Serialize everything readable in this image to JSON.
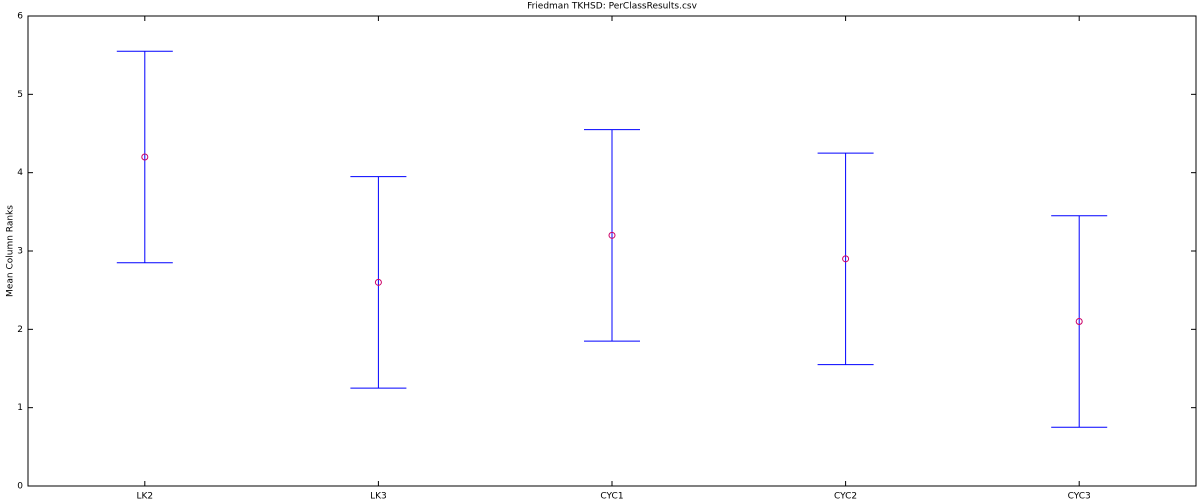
{
  "chart_data": {
    "type": "errorbar",
    "title": "Friedman TKHSD: PerClassResults.csv",
    "ylabel": "Mean Column Ranks",
    "categories": [
      "LK2",
      "LK3",
      "CYC1",
      "CYC2",
      "CYC3"
    ],
    "values": [
      4.2,
      2.6,
      3.2,
      2.9,
      2.1
    ],
    "errors": [
      1.35,
      1.35,
      1.35,
      1.35,
      1.35
    ],
    "color": "#0000ff",
    "marker_color": "#cc0066",
    "ylim": [
      0,
      6
    ],
    "yticks": [
      0,
      1,
      2,
      3,
      4,
      5,
      6
    ]
  }
}
